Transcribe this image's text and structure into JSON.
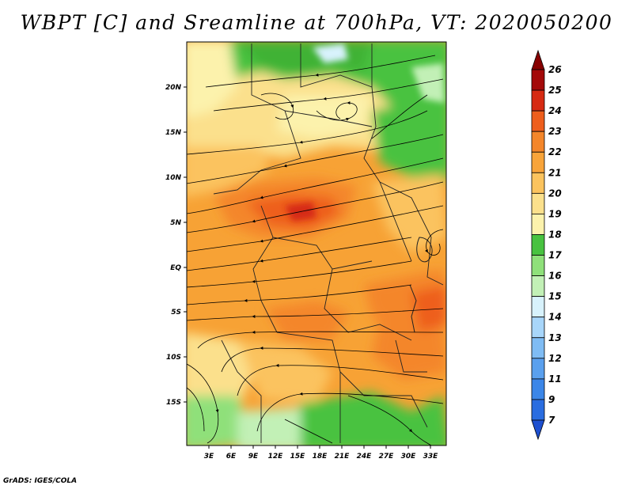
{
  "title": "WBPT [C] and Sreamline at 700hPa, VT: 2020050200",
  "credit": "GrADS: IGES/COLA",
  "map": {
    "lon_labels": [
      "3E",
      "6E",
      "9E",
      "12E",
      "15E",
      "18E",
      "21E",
      "24E",
      "27E",
      "30E",
      "33E"
    ],
    "lat_labels": [
      "20N",
      "15N",
      "10N",
      "5N",
      "EQ",
      "5S",
      "10S",
      "15S"
    ]
  },
  "colorbar": {
    "levels": [
      "7",
      "9",
      "11",
      "12",
      "13",
      "14",
      "15",
      "16",
      "17",
      "18",
      "19",
      "20",
      "21",
      "22",
      "23",
      "24",
      "25",
      "26"
    ],
    "colors": [
      "#1e50d0",
      "#2a6de0",
      "#3b86e8",
      "#5aa0ee",
      "#7fbcf4",
      "#a8d6fa",
      "#d8f2fc",
      "#c2f0b6",
      "#8fe07a",
      "#48c240",
      "#fcf2ac",
      "#fbe08c",
      "#fbc35e",
      "#f8a43a",
      "#f4862a",
      "#ee5e1c",
      "#d62a12",
      "#a40a0a",
      "#870000"
    ]
  },
  "chart_data": {
    "type": "heatmap",
    "title": "WBPT [C] and Sreamline at 700hPa, VT: 2020050200",
    "variable": "WBPT [C]",
    "level": "700hPa",
    "valid_time": "2020050200",
    "x_ticks": [
      "3E",
      "6E",
      "9E",
      "12E",
      "15E",
      "18E",
      "21E",
      "24E",
      "27E",
      "30E",
      "33E"
    ],
    "y_ticks": [
      "20N",
      "15N",
      "10N",
      "5N",
      "EQ",
      "5S",
      "10S",
      "15S"
    ],
    "xlim": [
      0,
      35
    ],
    "ylim": [
      -20,
      25
    ],
    "color_levels": [
      7,
      9,
      11,
      12,
      13,
      14,
      15,
      16,
      17,
      18,
      19,
      20,
      21,
      22,
      23,
      24,
      25,
      26
    ]
  }
}
